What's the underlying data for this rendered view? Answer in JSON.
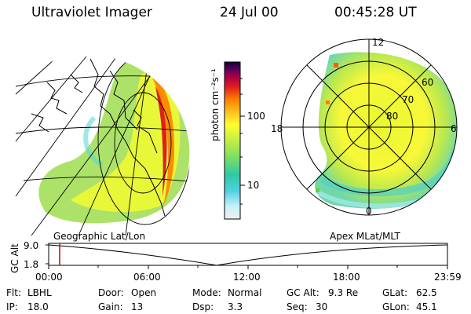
{
  "header": {
    "title": "Ultraviolet Imager",
    "date": "24 Jul 00",
    "time": "00:45:28 UT"
  },
  "left_panel": {
    "label": "Geographic Lat/Lon"
  },
  "right_panel": {
    "label": "Apex MLat/MLT",
    "mlt_labels": [
      "12",
      "18",
      "6",
      "0"
    ],
    "lat_labels": [
      "60",
      "70",
      "80"
    ]
  },
  "colorbar": {
    "unit_label": "photon cm⁻²s⁻¹",
    "ticks": [
      "100",
      "10"
    ],
    "scale": "log",
    "colors": [
      "#f0f0f0",
      "#c8f0f8",
      "#50d0e0",
      "#30c8a8",
      "#80e060",
      "#d0f040",
      "#ffff30",
      "#ffc020",
      "#ff8000",
      "#e02020",
      "#b00040",
      "#600060",
      "#100030"
    ]
  },
  "timeline": {
    "axis_label": "GC Alt",
    "y_ticks": [
      "9.0",
      "1.8"
    ],
    "x_ticks": [
      "00:00",
      "06:00",
      "12:00",
      "18:00",
      "23:59"
    ],
    "marker_color": "#d00000"
  },
  "info": {
    "row1": [
      {
        "label": "Flt:",
        "value": "LBHL"
      },
      {
        "label": "Door:",
        "value": "Open"
      },
      {
        "label": "Mode:",
        "value": "Normal"
      },
      {
        "label": "GC Alt:",
        "value": "9.3 Re"
      },
      {
        "label": "GLat:",
        "value": "62.5"
      }
    ],
    "row2": [
      {
        "label": "IP:",
        "value": "18.0"
      },
      {
        "label": "Gain:",
        "value": "13"
      },
      {
        "label": "Dsp:",
        "value": "3.3"
      },
      {
        "label": "Seq:",
        "value": "30"
      },
      {
        "label": "GLon:",
        "value": "45.1"
      }
    ]
  }
}
